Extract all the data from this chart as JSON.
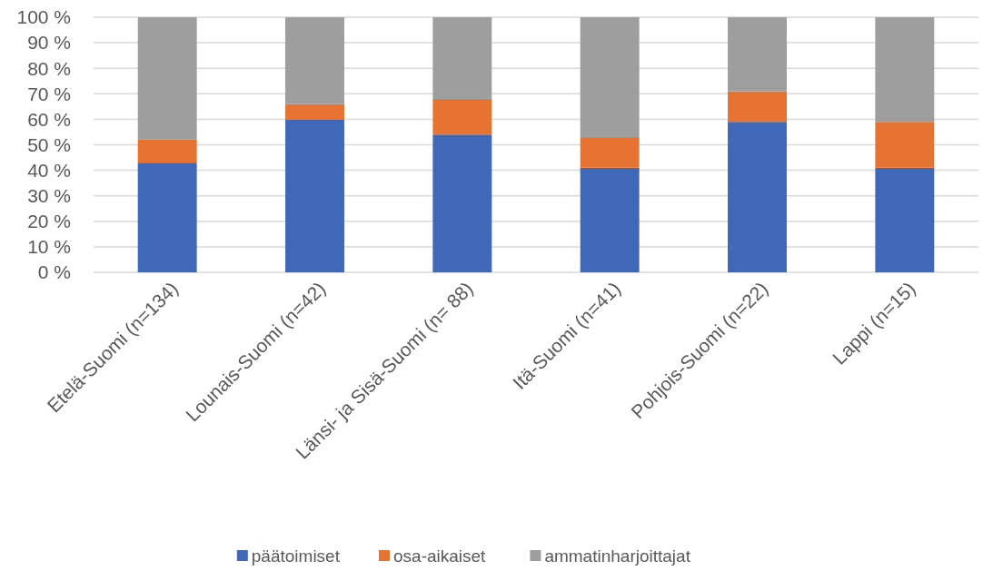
{
  "chart_data": {
    "type": "bar",
    "stacked": true,
    "categories": [
      "Etelä-Suomi (n=134)",
      "Lounais-Suomi (n=42)",
      "Länsi- ja Sisä-Suomi  (n= 88)",
      "Itä-Suomi (n=41)",
      "Pohjois-Suomi (n=22)",
      "Lappi (n=15)"
    ],
    "series": [
      {
        "name": "päätoimiset",
        "color": "#4068b8",
        "values": [
          43,
          60,
          54,
          41,
          59,
          41
        ]
      },
      {
        "name": "osa-aikaiset",
        "color": "#e67332",
        "values": [
          9,
          6,
          14,
          12,
          12,
          18
        ]
      },
      {
        "name": "ammatinharjoittajat",
        "color": "#9e9e9e",
        "values": [
          48,
          34,
          32,
          47,
          29,
          41
        ]
      }
    ],
    "ylim": [
      0,
      100
    ],
    "yticks": [
      {
        "value": 0,
        "label": "0 %"
      },
      {
        "value": 10,
        "label": "10 %"
      },
      {
        "value": 20,
        "label": "20 %"
      },
      {
        "value": 30,
        "label": "30 %"
      },
      {
        "value": 40,
        "label": "40 %"
      },
      {
        "value": 50,
        "label": "50 %"
      },
      {
        "value": 60,
        "label": "60 %"
      },
      {
        "value": 70,
        "label": "70 %"
      },
      {
        "value": 80,
        "label": "80 %"
      },
      {
        "value": 90,
        "label": "90 %"
      },
      {
        "value": 100,
        "label": "100 %"
      }
    ],
    "grid": "y",
    "legend": "bottom"
  }
}
